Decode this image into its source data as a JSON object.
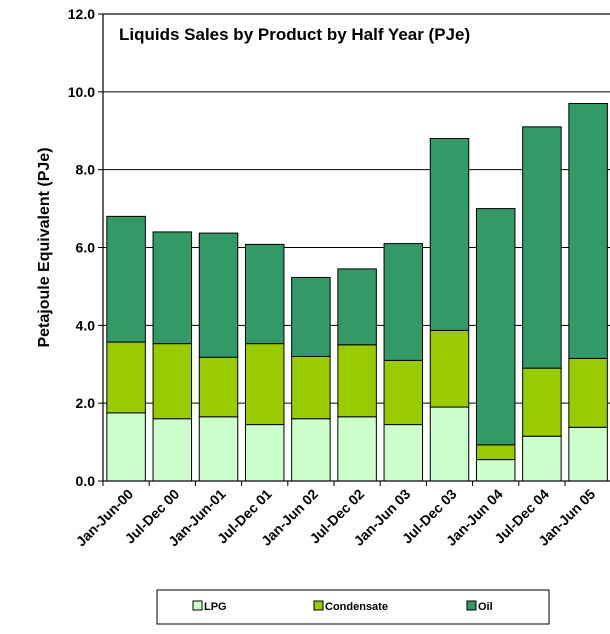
{
  "chart_data": {
    "type": "bar",
    "stacked": true,
    "title": "Liquids Sales by Product by Half Year (PJe)",
    "xlabel": "",
    "ylabel": "Petajoule Equivalent (PJe)",
    "ylim": [
      0,
      12
    ],
    "yticks": [
      "0.0",
      "2.0",
      "4.0",
      "6.0",
      "8.0",
      "10.0",
      "12.0"
    ],
    "ytick_values": [
      0,
      2,
      4,
      6,
      8,
      10,
      12
    ],
    "categories": [
      "Jan-Jun-00",
      "Jul-Dec 00",
      "Jan-Jun-01",
      "Jul-Dec 01",
      "Jan-Jun 02",
      "Jul-Dec 02",
      "Jan-Jun 03",
      "Jul-Dec 03",
      "Jan-Jun 04",
      "Jul-Dec 04",
      "Jan-Jun 05"
    ],
    "tick_label_every": 1,
    "series": [
      {
        "name": "LPG",
        "color": "#ccffcc",
        "values": [
          1.75,
          1.6,
          1.65,
          1.45,
          1.6,
          1.65,
          1.45,
          1.9,
          0.55,
          1.15,
          1.38
        ]
      },
      {
        "name": "Condensate",
        "color": "#99cc00",
        "values": [
          1.82,
          1.93,
          1.53,
          2.08,
          1.6,
          1.85,
          1.65,
          1.97,
          0.38,
          1.75,
          1.77
        ]
      },
      {
        "name": "Oil",
        "color": "#339966",
        "values": [
          3.23,
          2.87,
          3.19,
          2.55,
          2.03,
          1.95,
          3.0,
          4.93,
          6.07,
          6.2,
          6.55
        ]
      }
    ],
    "grid": {
      "horizontal": true,
      "vertical": false
    },
    "legend_position": "bottom"
  }
}
